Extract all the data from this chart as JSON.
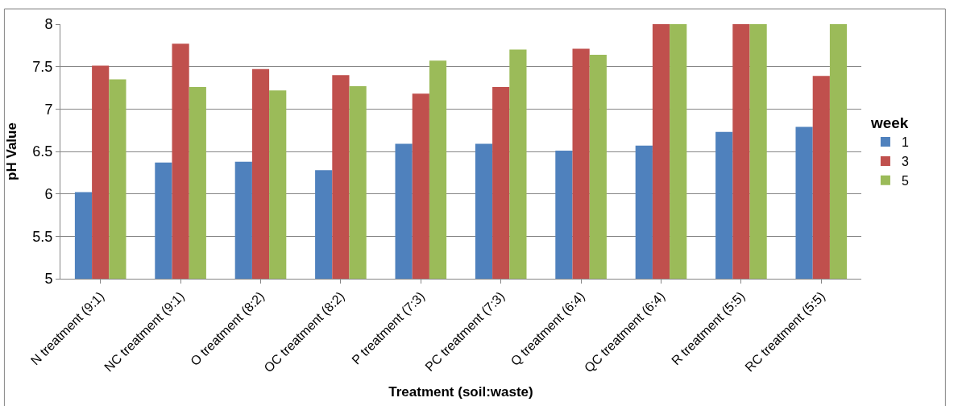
{
  "chart_data": {
    "type": "bar",
    "categories": [
      "N treatment (9:1)",
      "NC treatment (9:1)",
      "O treatment (8:2)",
      "OC treatment (8:2)",
      "P treatment (7:3)",
      "PC treatment (7:3)",
      "Q treatment (6:4)",
      "QC treatment (6:4)",
      "R treatment (5:5)",
      "RC treatment (5:5)"
    ],
    "series": [
      {
        "name": "1",
        "color": "#4f81bd",
        "values": [
          6.02,
          6.37,
          6.38,
          6.28,
          6.59,
          6.59,
          6.51,
          6.57,
          6.73,
          6.79
        ]
      },
      {
        "name": "3",
        "color": "#c0504d",
        "values": [
          7.51,
          7.77,
          7.47,
          7.4,
          7.18,
          7.26,
          7.71,
          8,
          8,
          7.39
        ]
      },
      {
        "name": "5",
        "color": "#9bbb59",
        "values": [
          7.35,
          7.26,
          7.22,
          7.27,
          7.57,
          7.7,
          7.64,
          8,
          8,
          8
        ]
      }
    ],
    "xlabel": "Treatment (soil:waste)",
    "ylabel": "pH Value",
    "legend_title": "week",
    "ylim": [
      5,
      8
    ],
    "yticks": [
      5,
      5.5,
      6,
      6.5,
      7,
      7.5,
      8
    ],
    "grid": "y",
    "legend": "right"
  }
}
